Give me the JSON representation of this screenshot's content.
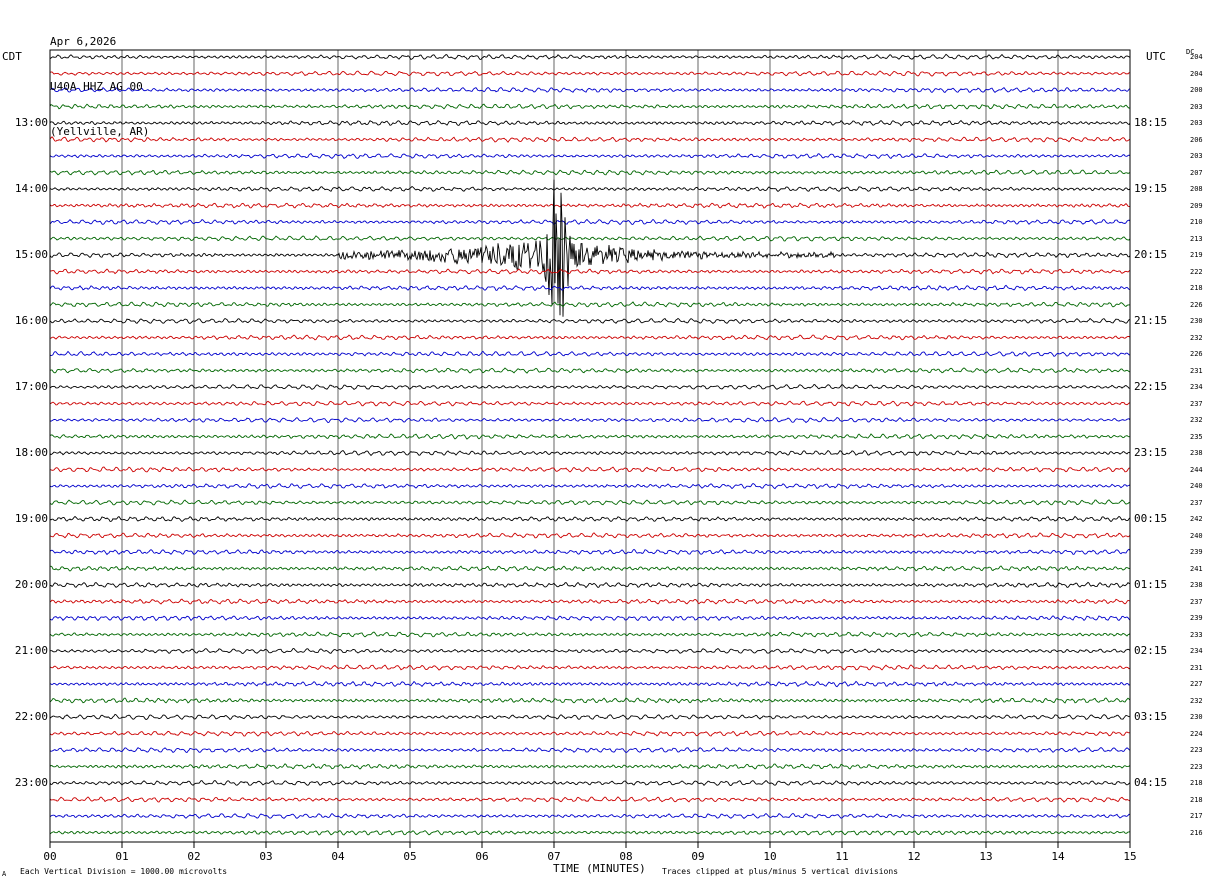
{
  "header": {
    "date": "Apr 6,2026",
    "station": "U40A HHZ AG 00",
    "location": "(Yellville, AR)"
  },
  "left_tz": "CDT",
  "right_tz": "UTC",
  "dc_label": "DC",
  "footer": {
    "mark": "A",
    "scale_note": "Each Vertical Division = 1000.00 microvolts",
    "xlabel": "TIME (MINUTES)",
    "clip_note": "Traces clipped at plus/minus 5 vertical divisions"
  },
  "colors": {
    "trace_cycle": [
      "#000000",
      "#cc0000",
      "#0000cc",
      "#006600"
    ],
    "grid": "#000000",
    "background": "#ffffff"
  },
  "chart_data": {
    "type": "line",
    "title": "U40A HHZ AG 00",
    "xlabel": "TIME (MINUTES)",
    "xlim": [
      0,
      15
    ],
    "x_ticks": [
      "00",
      "01",
      "02",
      "03",
      "04",
      "05",
      "06",
      "07",
      "08",
      "09",
      "10",
      "11",
      "12",
      "13",
      "14",
      "15"
    ],
    "rows": 48,
    "row_minutes": 15,
    "left_hour_labels": [
      {
        "row": 4,
        "label": "13:00"
      },
      {
        "row": 8,
        "label": "14:00"
      },
      {
        "row": 12,
        "label": "15:00"
      },
      {
        "row": 16,
        "label": "16:00"
      },
      {
        "row": 20,
        "label": "17:00"
      },
      {
        "row": 24,
        "label": "18:00"
      },
      {
        "row": 28,
        "label": "19:00"
      },
      {
        "row": 32,
        "label": "20:00"
      },
      {
        "row": 36,
        "label": "21:00"
      },
      {
        "row": 40,
        "label": "22:00"
      },
      {
        "row": 44,
        "label": "23:00"
      }
    ],
    "right_hour_labels": [
      {
        "row": 4,
        "label": "18:15"
      },
      {
        "row": 8,
        "label": "19:15"
      },
      {
        "row": 12,
        "label": "20:15"
      },
      {
        "row": 16,
        "label": "21:15"
      },
      {
        "row": 20,
        "label": "22:15"
      },
      {
        "row": 24,
        "label": "23:15"
      },
      {
        "row": 28,
        "label": "00:15"
      },
      {
        "row": 32,
        "label": "01:15"
      },
      {
        "row": 36,
        "label": "02:15"
      },
      {
        "row": 40,
        "label": "03:15"
      },
      {
        "row": 44,
        "label": "04:15"
      }
    ],
    "dc_offsets": [
      "204",
      "204",
      "200",
      "203",
      "203",
      "206",
      "203",
      "207",
      "208",
      "209",
      "210",
      "213",
      "219",
      "222",
      "218",
      "226",
      "230",
      "232",
      "226",
      "231",
      "234",
      "237",
      "232",
      "235",
      "238",
      "244",
      "240",
      "237",
      "242",
      "240",
      "239",
      "241",
      "238",
      "237",
      "239",
      "233",
      "234",
      "231",
      "227",
      "232",
      "230",
      "224",
      "223",
      "223",
      "218",
      "218",
      "217",
      "216"
    ],
    "event": {
      "row": 12,
      "start_minute": 4.0,
      "peak_minute": 7.05,
      "end_minute": 11.0,
      "peak_divisions": 4.5
    },
    "legend": "none",
    "grid": true
  }
}
